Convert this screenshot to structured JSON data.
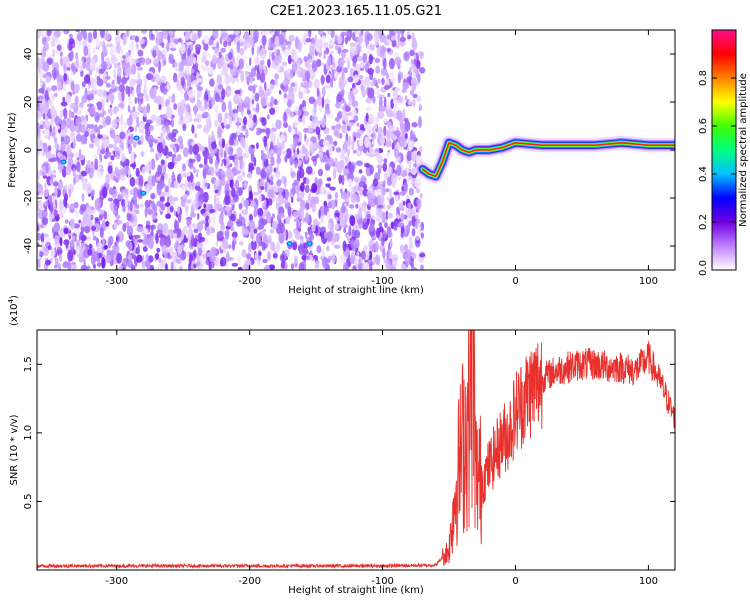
{
  "title": "C2E1.2023.165.11.05.G21",
  "chart_data": [
    {
      "type": "heatmap",
      "xlabel": "Height of straight line (km)",
      "ylabel": "Frequency (Hz)",
      "xlim": [
        -360,
        120
      ],
      "ylim": [
        -50,
        50
      ],
      "xticks": [
        -300,
        -200,
        -100,
        0,
        100
      ],
      "yticks": [
        -40,
        -20,
        0,
        20,
        40
      ],
      "grid": false,
      "noise_region_x": [
        -360,
        -70
      ],
      "signal_track": [
        {
          "x": -70,
          "y": -8
        },
        {
          "x": -65,
          "y": -10
        },
        {
          "x": -60,
          "y": -11
        },
        {
          "x": -55,
          "y": -5
        },
        {
          "x": -50,
          "y": 3
        },
        {
          "x": -45,
          "y": 2
        },
        {
          "x": -40,
          "y": 0
        },
        {
          "x": -35,
          "y": -1
        },
        {
          "x": -30,
          "y": 0
        },
        {
          "x": -20,
          "y": 0
        },
        {
          "x": -10,
          "y": 1
        },
        {
          "x": 0,
          "y": 3
        },
        {
          "x": 20,
          "y": 2
        },
        {
          "x": 40,
          "y": 2
        },
        {
          "x": 60,
          "y": 2
        },
        {
          "x": 80,
          "y": 3
        },
        {
          "x": 100,
          "y": 2
        },
        {
          "x": 120,
          "y": 2
        }
      ],
      "colorbar": {
        "label": "Normalized spectral amplitude",
        "range": [
          0,
          1
        ],
        "ticks": [
          "0.0",
          "0.2",
          "0.4",
          "0.6",
          "0.8"
        ],
        "tick_values": [
          0.0,
          0.2,
          0.4,
          0.6,
          0.8
        ],
        "colors": [
          "#ffffff",
          "#c080ff",
          "#7000e0",
          "#0000ff",
          "#00c0ff",
          "#00ff80",
          "#40ff00",
          "#ffff00",
          "#ff8000",
          "#ff0000",
          "#ff1090"
        ]
      }
    },
    {
      "type": "line",
      "xlabel": "Height of straight line (km)",
      "ylabel": "SNR (10 * v/v)",
      "scale_label": "(x10",
      "scale_exponent": "4",
      "scale_close": ")",
      "xlim": [
        -360,
        120
      ],
      "ylim": [
        0,
        17500
      ],
      "xticks": [
        -300,
        -200,
        -100,
        0,
        100
      ],
      "yticks": [
        5000,
        10000,
        15000
      ],
      "ytick_labels": [
        "0.5",
        "1.0",
        "1.5"
      ],
      "grid": false,
      "series": [
        {
          "color": "#e8302c",
          "x": [
            -360,
            -300,
            -200,
            -100,
            -60,
            -50,
            -45,
            -40,
            -35,
            -32,
            -30,
            -25,
            -20,
            -15,
            -10,
            -5,
            0,
            10,
            20,
            30,
            40,
            50,
            60,
            70,
            80,
            90,
            100,
            110,
            120
          ],
          "y": [
            300,
            300,
            300,
            300,
            350,
            1500,
            6000,
            9000,
            11000,
            17000,
            7000,
            6500,
            7500,
            8500,
            9500,
            10000,
            11500,
            13000,
            14000,
            14500,
            14800,
            15000,
            15000,
            14800,
            14800,
            14500,
            15500,
            13500,
            11000
          ]
        }
      ]
    }
  ]
}
